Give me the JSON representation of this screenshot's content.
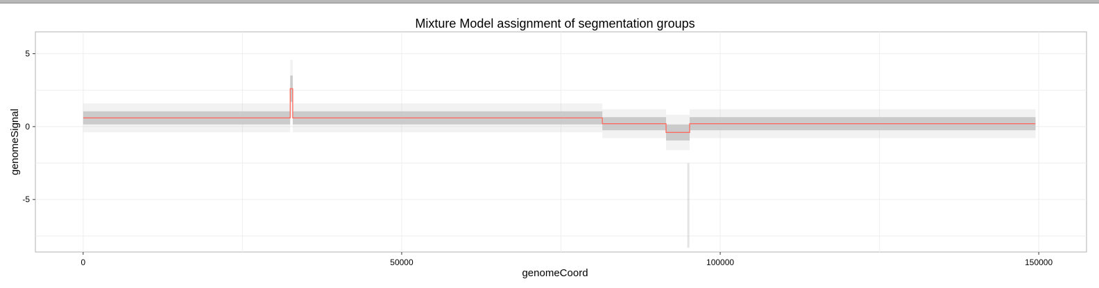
{
  "chart_data": {
    "type": "line",
    "title": "Mixture Model assignment of segmentation groups",
    "xlabel": "genomeCoord",
    "ylabel": "genomeSignal",
    "xlim": [
      -7500,
      157500
    ],
    "ylim": [
      -8.6,
      6.5
    ],
    "x_ticks": [
      0,
      50000,
      100000,
      150000
    ],
    "y_ticks": [
      5,
      0,
      -5
    ],
    "grid": true,
    "legend": "none",
    "colors": {
      "segment_line": "#ff6b5e",
      "scatter_band": "#c4c4c4",
      "panel_border": "#b0b0b0",
      "grid": "#eeeeee"
    },
    "series": [
      {
        "kind": "scatter-band",
        "segments": [
          {
            "x0": 0,
            "x1": 32500,
            "center": 0.6,
            "spread": 0.45
          },
          {
            "x0": 32500,
            "x1": 32900,
            "center": 2.6,
            "spread": 0.9
          },
          {
            "x0": 32900,
            "x1": 81500,
            "center": 0.6,
            "spread": 0.45
          },
          {
            "x0": 81500,
            "x1": 91500,
            "center": 0.2,
            "spread": 0.45
          },
          {
            "x0": 91500,
            "x1": 95200,
            "center": -0.4,
            "spread": 0.55
          },
          {
            "x0": 95200,
            "x1": 149500,
            "center": 0.2,
            "spread": 0.45
          }
        ],
        "outliers": [
          {
            "x": 95000,
            "y0": -2.5,
            "y1": -8.3
          },
          {
            "x": 32700,
            "y0": 3.2,
            "y1": 4.2
          }
        ]
      },
      {
        "kind": "step",
        "x": [
          0,
          32500,
          32500,
          32900,
          32900,
          81500,
          81500,
          91500,
          91500,
          95200,
          95200,
          149500
        ],
        "y": [
          0.6,
          0.6,
          2.6,
          2.6,
          0.6,
          0.6,
          0.2,
          0.2,
          -0.4,
          -0.4,
          0.2,
          0.2
        ]
      }
    ]
  }
}
